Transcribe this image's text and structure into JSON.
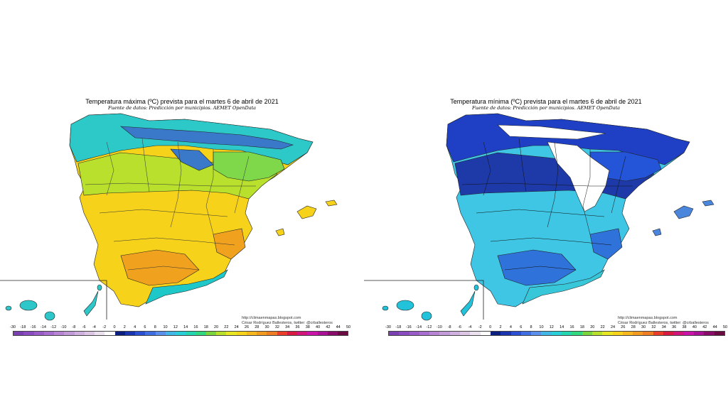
{
  "maps": [
    {
      "title": "Temperatura máxima (ºC) prevista para el martes 6 de abril de 2021",
      "subtitle": "Fuente de datos: Predicción por municipios. AEMET OpenData",
      "credit_url": "http://climaenmapas.blogspot.com",
      "credit_author": "César Rodríguez Ballesteros, twitter: @crballesteros",
      "palette": {
        "north": "#2dc9c8",
        "northeast": "#7fd84a",
        "pyrenees": "#3a78c9",
        "center": "#b8e02c",
        "south": "#f6d21a",
        "hot": "#f0a21e",
        "coast": "#1ec8c8",
        "islands": "#f6d21a",
        "canary": "#2ec7c9"
      }
    },
    {
      "title": "Temperatura mínima (ºC) prevista para el martes 6 de abril de 2021",
      "subtitle": "Fuente de datos: Predicción por municipios. AEMET OpenData",
      "credit_url": "http://climaenmapas.blogspot.com",
      "credit_author": "César Rodríguez Ballesteros, twitter: @crballesteros",
      "palette": {
        "north": "#1f3fc4",
        "northeast": "#2454d8",
        "pyrenees": "#ffffff",
        "center": "#1e3aa8",
        "south": "#3ec6e4",
        "hot": "#2f72d9",
        "coast": "#38c7d8",
        "islands": "#4a86dc",
        "canary": "#22c3da"
      }
    }
  ],
  "scale": {
    "labels": [
      "-30",
      "-18",
      "-16",
      "-14",
      "-12",
      "-10",
      "-8",
      "-6",
      "-4",
      "-2",
      "0",
      "2",
      "4",
      "6",
      "8",
      "10",
      "12",
      "14",
      "16",
      "18",
      "20",
      "22",
      "24",
      "26",
      "28",
      "30",
      "32",
      "34",
      "36",
      "38",
      "40",
      "42",
      "44",
      "50"
    ],
    "colors": [
      "#7b3fb4",
      "#8a4bc0",
      "#9a5bc9",
      "#a86ecf",
      "#b784d5",
      "#c39ad8",
      "#d0b0de",
      "#ddc6e4",
      "#ebe0ee",
      "#ffffff",
      "#0a1f80",
      "#1a34b0",
      "#2a4fd2",
      "#3f6ee2",
      "#5a90ec",
      "#40b7e6",
      "#28cfd6",
      "#23d6b0",
      "#30d880",
      "#7ad43c",
      "#b8e02a",
      "#e6e622",
      "#f6d21a",
      "#f5b61e",
      "#f29a20",
      "#ee7c22",
      "#ea3d2a",
      "#d81a42",
      "#d0147a",
      "#c812a8",
      "#a81096",
      "#8a0c6a",
      "#6b0a40"
    ]
  }
}
